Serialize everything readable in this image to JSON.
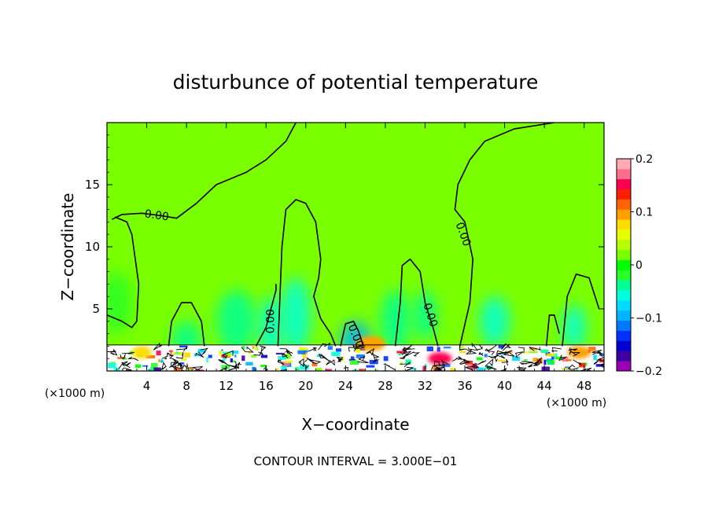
{
  "chart_data": {
    "type": "heatmap",
    "title": "disturbunce of potential temperature",
    "xlabel": "X−coordinate",
    "ylabel": "Z−coordinate",
    "x_unit_left": "(×1000 m)",
    "x_unit_right": "(×1000 m)",
    "xlim": [
      0,
      50
    ],
    "ylim": [
      0,
      20
    ],
    "x_ticks": [
      4,
      8,
      12,
      16,
      20,
      24,
      28,
      32,
      36,
      40,
      44,
      48
    ],
    "y_ticks": [
      5,
      10,
      15
    ],
    "contour_interval_text": "CONTOUR INTERVAL = 3.000E−01",
    "contour_labels": [
      {
        "text": "0.00",
        "x": 5,
        "y": 12.5,
        "angle": 8
      },
      {
        "text": "0.00",
        "x": 16.5,
        "y": 4,
        "angle": -90
      },
      {
        "text": "0.00",
        "x": 25,
        "y": 2.8,
        "angle": 68
      },
      {
        "text": "0.00",
        "x": 32.5,
        "y": 4.5,
        "angle": 72
      },
      {
        "text": "0.00",
        "x": 35.8,
        "y": 11,
        "angle": 70
      }
    ],
    "colorbar": {
      "min": -0.2,
      "max": 0.2,
      "tick_labels": [
        "0.2",
        "0.1",
        "0",
        "−0.1",
        "−0.2"
      ],
      "tick_values": [
        0.2,
        0.1,
        0,
        -0.1,
        -0.2
      ],
      "colors": [
        "#9b00b4",
        "#3c00a5",
        "#0000d2",
        "#0032ff",
        "#0078ff",
        "#00b4ff",
        "#00dcff",
        "#00ffdc",
        "#00ff96",
        "#28ff28",
        "#00ff00",
        "#7aff00",
        "#b4ff00",
        "#e6ff00",
        "#ffdc00",
        "#ffa000",
        "#ff6400",
        "#ff1e00",
        "#ff0050",
        "#ff6e8c",
        "#ffaab4"
      ]
    },
    "background_value": 0.02,
    "cool_patches": [
      {
        "x": 1,
        "y": 5.5,
        "rx": 1.5,
        "ry": 2.5,
        "value": -0.02
      },
      {
        "x": 8,
        "y": 2.5,
        "rx": 1.5,
        "ry": 1.5,
        "value": -0.04
      },
      {
        "x": 13,
        "y": 4,
        "rx": 2,
        "ry": 2.5,
        "value": -0.03
      },
      {
        "x": 16.5,
        "y": 3.5,
        "rx": 1.2,
        "ry": 2.5,
        "value": -0.05
      },
      {
        "x": 19,
        "y": 4.5,
        "rx": 1.5,
        "ry": 3,
        "value": -0.05
      },
      {
        "x": 25,
        "y": 2.5,
        "rx": 1.5,
        "ry": 1.5,
        "value": -0.09
      },
      {
        "x": 29,
        "y": 4,
        "rx": 1.5,
        "ry": 2.5,
        "value": -0.03
      },
      {
        "x": 32,
        "y": 4.5,
        "rx": 1.2,
        "ry": 2,
        "value": -0.04
      },
      {
        "x": 39,
        "y": 4,
        "rx": 1.5,
        "ry": 2,
        "value": -0.05
      },
      {
        "x": 47,
        "y": 3.5,
        "rx": 1.2,
        "ry": 1.8,
        "value": -0.06
      }
    ],
    "warm_patches": [
      {
        "x": 3.5,
        "y": 1.5,
        "rx": 1,
        "ry": 0.5,
        "value": 0.08
      },
      {
        "x": 26.5,
        "y": 2.2,
        "rx": 1.5,
        "ry": 0.6,
        "value": 0.09
      },
      {
        "x": 33.5,
        "y": 1,
        "rx": 1.2,
        "ry": 0.5,
        "value": 0.15
      },
      {
        "x": 47.5,
        "y": 1.5,
        "rx": 1.2,
        "ry": 0.5,
        "value": 0.1
      }
    ],
    "zero_contour": [
      [
        0.5,
        12.2
      ],
      [
        1.5,
        12.6
      ],
      [
        3.5,
        12.7
      ],
      [
        5.5,
        12.5
      ],
      [
        7,
        12.3
      ],
      [
        9,
        13.5
      ],
      [
        11,
        15
      ],
      [
        14,
        16
      ],
      [
        16,
        17
      ],
      [
        18,
        18.5
      ],
      [
        19,
        20
      ]
    ],
    "contour_paths": [
      [
        [
          0,
          4.5
        ],
        [
          1.5,
          4
        ],
        [
          2.5,
          3.5
        ],
        [
          3,
          4
        ],
        [
          3.2,
          7
        ],
        [
          2.5,
          11
        ],
        [
          2,
          12
        ],
        [
          0.8,
          12.4
        ]
      ],
      [
        [
          6.2,
          2
        ],
        [
          6.5,
          4
        ],
        [
          7.5,
          5.5
        ],
        [
          8.5,
          5.5
        ],
        [
          9.5,
          4
        ],
        [
          9.8,
          2
        ]
      ],
      [
        [
          15,
          2
        ],
        [
          16,
          3.5
        ],
        [
          17,
          6.5
        ],
        [
          17,
          7
        ]
      ],
      [
        [
          17.2,
          2
        ],
        [
          17.6,
          10
        ],
        [
          18,
          13
        ],
        [
          19,
          13.8
        ],
        [
          20,
          13.5
        ],
        [
          21,
          12
        ],
        [
          21.5,
          9
        ],
        [
          21.3,
          7.5
        ],
        [
          20.8,
          6
        ],
        [
          21.5,
          4.2
        ],
        [
          22.5,
          3
        ],
        [
          23,
          2
        ]
      ],
      [
        [
          23.5,
          2
        ],
        [
          24,
          3.8
        ],
        [
          24.8,
          4
        ],
        [
          25.3,
          3.2
        ],
        [
          25.8,
          2
        ]
      ],
      [
        [
          29,
          2
        ],
        [
          29.5,
          5.5
        ],
        [
          29.7,
          8.5
        ],
        [
          30.5,
          9
        ],
        [
          31.5,
          8
        ],
        [
          32,
          5.5
        ],
        [
          32.8,
          3.5
        ],
        [
          33.3,
          2
        ]
      ],
      [
        [
          35.5,
          2
        ],
        [
          36.5,
          5.5
        ],
        [
          36.8,
          9
        ],
        [
          36,
          12
        ],
        [
          35,
          13
        ],
        [
          35.3,
          15
        ],
        [
          36.5,
          17
        ],
        [
          38,
          18.5
        ],
        [
          41,
          19.5
        ],
        [
          45,
          20
        ]
      ],
      [
        [
          44.2,
          2
        ],
        [
          44.5,
          4.5
        ],
        [
          45,
          4.5
        ],
        [
          45.5,
          3
        ]
      ],
      [
        [
          45.8,
          2
        ],
        [
          46.3,
          6
        ],
        [
          47.2,
          7.8
        ],
        [
          48.5,
          7.5
        ],
        [
          49.5,
          5
        ]
      ]
    ]
  }
}
